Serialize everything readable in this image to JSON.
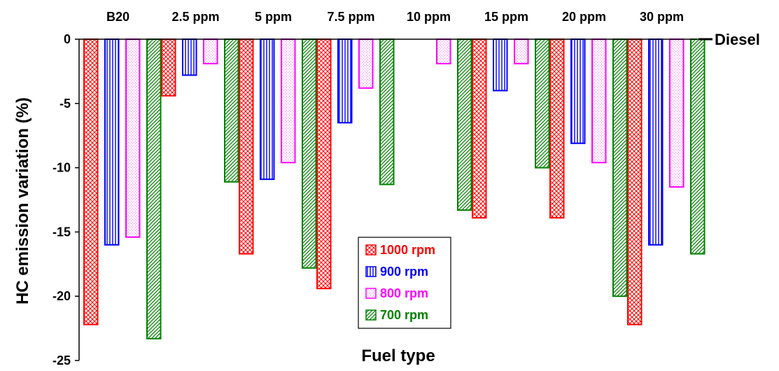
{
  "chart_data": {
    "type": "bar",
    "title": "",
    "xlabel": "Fuel type",
    "ylabel": "HC emission variation (%)",
    "ylim": [
      -25,
      0
    ],
    "yticks": [
      0,
      -5,
      -10,
      -15,
      -20,
      -25
    ],
    "grid": false,
    "legend_position": "center-bottom",
    "reference_line": {
      "label": "Diesel",
      "value": 0
    },
    "categories": [
      "B20",
      "2.5 ppm",
      "5 ppm",
      "7.5 ppm",
      "10 ppm",
      "15 ppm",
      "20 ppm",
      "30 ppm"
    ],
    "series": [
      {
        "name": "1000 rpm",
        "color": "#ff0000",
        "pattern": "crosshatch",
        "values": [
          -22.2,
          -4.4,
          -16.7,
          -19.4,
          0,
          -13.9,
          -13.9,
          -22.2
        ]
      },
      {
        "name": "900 rpm",
        "color": "#0000ff",
        "pattern": "vertical",
        "values": [
          -16.0,
          -2.8,
          -10.9,
          -6.5,
          0,
          -4.0,
          -8.1,
          -16.0
        ]
      },
      {
        "name": "800 rpm",
        "color": "#ff00ff",
        "pattern": "dots",
        "values": [
          -15.4,
          -1.9,
          -9.6,
          -3.8,
          -1.9,
          -1.9,
          -9.6,
          -11.5
        ]
      },
      {
        "name": "700 rpm",
        "color": "#008000",
        "pattern": "diagonal",
        "values": [
          -23.3,
          -11.1,
          -17.8,
          -11.3,
          -13.3,
          -10.0,
          -20.0,
          -16.7
        ]
      }
    ]
  }
}
